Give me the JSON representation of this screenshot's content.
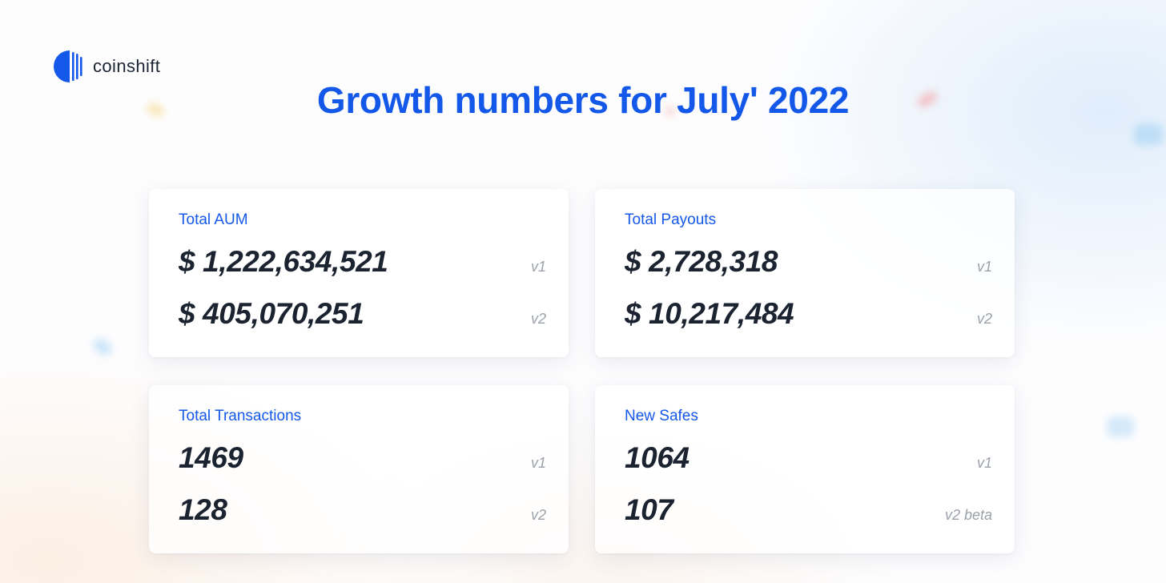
{
  "brand": {
    "name": "coinshift",
    "accent_color": "#1458ea"
  },
  "title": "Growth numbers for July' 2022",
  "cards": [
    {
      "label": "Total AUM",
      "rows": [
        {
          "value": "$ 1,222,634,521",
          "version": "v1"
        },
        {
          "value": "$ 405,070,251",
          "version": "v2"
        }
      ]
    },
    {
      "label": "Total Payouts",
      "rows": [
        {
          "value": "$ 2,728,318",
          "version": "v1"
        },
        {
          "value": "$ 10,217,484",
          "version": "v2"
        }
      ]
    },
    {
      "label": "Total Transactions",
      "rows": [
        {
          "value": "1469",
          "version": "v1"
        },
        {
          "value": "128",
          "version": "v2"
        }
      ]
    },
    {
      "label": "New Safes",
      "rows": [
        {
          "value": "1064",
          "version": "v1"
        },
        {
          "value": "107",
          "version": "v2 beta"
        }
      ]
    }
  ]
}
